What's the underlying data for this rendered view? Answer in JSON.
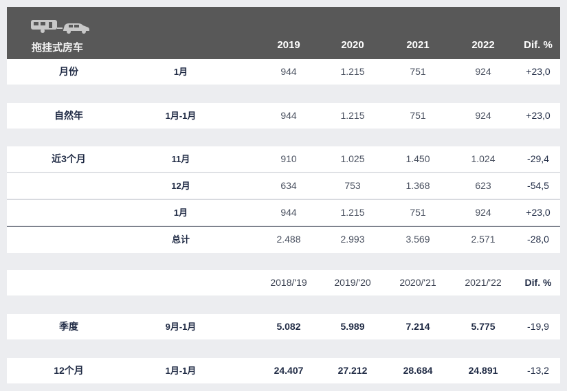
{
  "header": {
    "title": "拖挂式房车",
    "columns": [
      "2019",
      "2020",
      "2021",
      "2022",
      "Dif. %"
    ],
    "icons": [
      "caravan-icon",
      "car-icon"
    ]
  },
  "rows": {
    "monthly": {
      "label": "月份",
      "period": "1月",
      "values": [
        "944",
        "1.215",
        "751",
        "924",
        "+23,0"
      ]
    },
    "ytd": {
      "label": "自然年",
      "period": "1月-1月",
      "values": [
        "944",
        "1.215",
        "751",
        "924",
        "+23,0"
      ]
    },
    "last3_nov": {
      "label": "近3个月",
      "period": "11月",
      "values": [
        "910",
        "1.025",
        "1.450",
        "1.024",
        "-29,4"
      ]
    },
    "last3_dec": {
      "label": "",
      "period": "12月",
      "values": [
        "634",
        "753",
        "1.368",
        "623",
        "-54,5"
      ]
    },
    "last3_jan": {
      "label": "",
      "period": "1月",
      "values": [
        "944",
        "1.215",
        "751",
        "924",
        "+23,0"
      ]
    },
    "total": {
      "label": "",
      "period": "总计",
      "values": [
        "2.488",
        "2.993",
        "3.569",
        "2.571",
        "-28,0"
      ]
    }
  },
  "season_header": {
    "columns": [
      "2018/'19",
      "2019/'20",
      "2020/'21",
      "2021/'22",
      "Dif. %"
    ]
  },
  "season_rows": {
    "season": {
      "label": "季度",
      "period": "9月-1月",
      "values": [
        "5.082",
        "5.989",
        "7.214",
        "5.775",
        "-19,9"
      ]
    },
    "twelve": {
      "label": "12个月",
      "period": "1月-1月",
      "values": [
        "24.407",
        "27.212",
        "28.684",
        "24.891",
        "-13,2"
      ]
    }
  }
}
